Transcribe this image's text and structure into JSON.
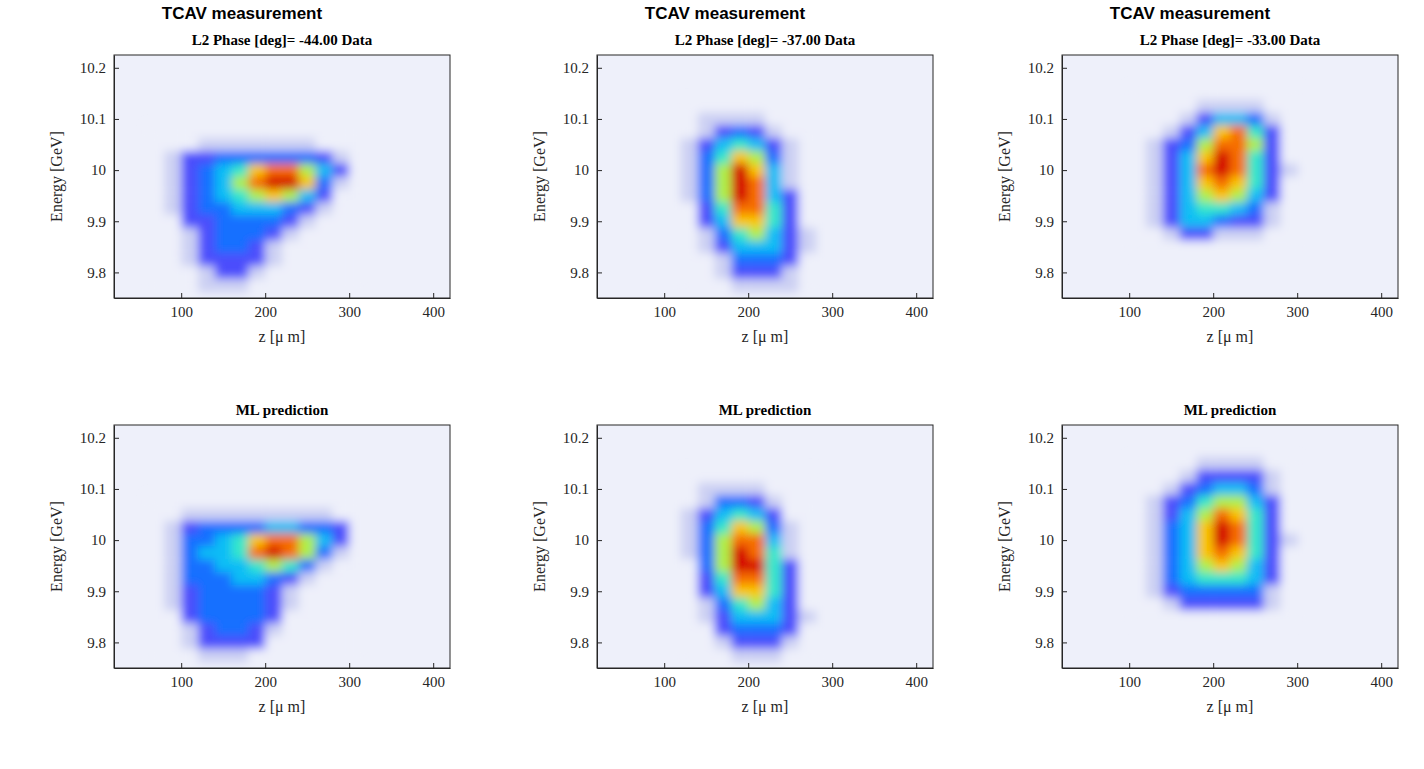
{
  "chart_data": [
    {
      "type": "heatmap",
      "annotation": "TCAV measurement",
      "title": "L2 Phase [deg]= -44.00 Data",
      "x_label": "z [μ m]",
      "y_label": "Energy [GeV]",
      "xlim": [
        20,
        420
      ],
      "ylim": [
        9.75,
        10.225
      ],
      "xticks": [
        100,
        200,
        300,
        400
      ],
      "yticks": [
        9.8,
        9.9,
        10,
        10.1,
        10.2
      ],
      "zlim": [
        0,
        9
      ],
      "x": [
        70,
        90,
        110,
        130,
        150,
        170,
        190,
        210,
        230,
        250,
        270,
        290,
        310
      ],
      "y": [
        10.075,
        10.05,
        10.025,
        10.0,
        9.975,
        9.95,
        9.925,
        9.9,
        9.875,
        9.85,
        9.825,
        9.8,
        9.775
      ],
      "z": [
        [
          0,
          0,
          0,
          0,
          0,
          0,
          0,
          0,
          0,
          0,
          0,
          0,
          0
        ],
        [
          0,
          0,
          0,
          1,
          1,
          1,
          1,
          1,
          1,
          1,
          0,
          0,
          0
        ],
        [
          0,
          1,
          2,
          2,
          3,
          3,
          3,
          3,
          3,
          3,
          2,
          1,
          0
        ],
        [
          0,
          1,
          2,
          3,
          4,
          5,
          7,
          8,
          8,
          6,
          4,
          2,
          0
        ],
        [
          0,
          1,
          2,
          3,
          4,
          6,
          8,
          9,
          9,
          7,
          3,
          1,
          0
        ],
        [
          0,
          1,
          2,
          3,
          4,
          5,
          6,
          7,
          6,
          4,
          2,
          0,
          0
        ],
        [
          0,
          1,
          2,
          3,
          3,
          4,
          4,
          4,
          3,
          2,
          1,
          0,
          0
        ],
        [
          0,
          0,
          2,
          2,
          3,
          3,
          3,
          3,
          2,
          1,
          0,
          0,
          0
        ],
        [
          0,
          0,
          1,
          2,
          3,
          3,
          3,
          2,
          1,
          0,
          0,
          0,
          0
        ],
        [
          0,
          0,
          1,
          2,
          3,
          3,
          2,
          1,
          0,
          0,
          0,
          0,
          0
        ],
        [
          0,
          0,
          1,
          2,
          2,
          2,
          2,
          1,
          0,
          0,
          0,
          0,
          0
        ],
        [
          0,
          0,
          0,
          1,
          2,
          2,
          1,
          0,
          0,
          0,
          0,
          0,
          0
        ],
        [
          0,
          0,
          0,
          1,
          1,
          1,
          0,
          0,
          0,
          0,
          0,
          0,
          0
        ]
      ]
    },
    {
      "type": "heatmap",
      "annotation": "TCAV measurement",
      "title": "L2 Phase [deg]= -37.00 Data",
      "x_label": "z [μ m]",
      "y_label": "Energy [GeV]",
      "xlim": [
        20,
        420
      ],
      "ylim": [
        9.75,
        10.225
      ],
      "xticks": [
        100,
        200,
        300,
        400
      ],
      "yticks": [
        9.8,
        9.9,
        10,
        10.1,
        10.2
      ],
      "zlim": [
        0,
        9
      ],
      "x": [
        130,
        150,
        170,
        190,
        210,
        230,
        250,
        270
      ],
      "y": [
        10.125,
        10.1,
        10.075,
        10.05,
        10.025,
        10.0,
        9.975,
        9.95,
        9.925,
        9.9,
        9.875,
        9.85,
        9.825,
        9.8,
        9.775
      ],
      "z": [
        [
          0,
          0,
          0,
          0,
          0,
          0,
          0,
          0
        ],
        [
          0,
          1,
          1,
          1,
          1,
          0,
          0,
          0
        ],
        [
          0,
          1,
          2,
          3,
          2,
          1,
          0,
          0
        ],
        [
          1,
          2,
          4,
          5,
          4,
          2,
          1,
          0
        ],
        [
          1,
          3,
          5,
          7,
          6,
          3,
          1,
          0
        ],
        [
          1,
          3,
          6,
          9,
          7,
          4,
          1,
          0
        ],
        [
          1,
          3,
          6,
          9,
          8,
          4,
          1,
          0
        ],
        [
          1,
          3,
          6,
          9,
          8,
          4,
          2,
          0
        ],
        [
          0,
          2,
          5,
          8,
          8,
          5,
          2,
          0
        ],
        [
          0,
          2,
          4,
          7,
          7,
          5,
          2,
          0
        ],
        [
          0,
          1,
          3,
          5,
          6,
          4,
          2,
          1
        ],
        [
          0,
          1,
          2,
          4,
          4,
          4,
          2,
          1
        ],
        [
          0,
          0,
          1,
          3,
          3,
          3,
          2,
          0
        ],
        [
          0,
          0,
          1,
          2,
          2,
          2,
          1,
          0
        ],
        [
          0,
          0,
          0,
          1,
          1,
          1,
          1,
          0
        ]
      ]
    },
    {
      "type": "heatmap",
      "annotation": "TCAV measurement",
      "title": "L2 Phase [deg]= -33.00 Data",
      "x_label": "z [μ m]",
      "y_label": "Energy [GeV]",
      "xlim": [
        20,
        420
      ],
      "ylim": [
        9.75,
        10.225
      ],
      "xticks": [
        100,
        200,
        300,
        400
      ],
      "yticks": [
        9.8,
        9.9,
        10,
        10.1,
        10.2
      ],
      "zlim": [
        0,
        9
      ],
      "x": [
        110,
        130,
        150,
        170,
        190,
        210,
        230,
        250,
        270,
        290
      ],
      "y": [
        10.15,
        10.125,
        10.1,
        10.075,
        10.05,
        10.025,
        10.0,
        9.975,
        9.95,
        9.925,
        9.9,
        9.875,
        9.85
      ],
      "z": [
        [
          0,
          0,
          0,
          0,
          0,
          0,
          0,
          0,
          0,
          0
        ],
        [
          0,
          0,
          0,
          0,
          1,
          1,
          1,
          1,
          0,
          0
        ],
        [
          0,
          0,
          0,
          1,
          2,
          4,
          4,
          3,
          1,
          0
        ],
        [
          0,
          0,
          1,
          2,
          4,
          7,
          8,
          5,
          2,
          0
        ],
        [
          0,
          1,
          2,
          3,
          6,
          8,
          8,
          6,
          2,
          0
        ],
        [
          0,
          1,
          2,
          4,
          7,
          9,
          8,
          5,
          2,
          0
        ],
        [
          0,
          1,
          2,
          4,
          8,
          9,
          8,
          5,
          2,
          1
        ],
        [
          0,
          1,
          2,
          4,
          7,
          8,
          7,
          5,
          2,
          0
        ],
        [
          0,
          1,
          2,
          4,
          6,
          7,
          6,
          4,
          2,
          0
        ],
        [
          0,
          1,
          2,
          4,
          5,
          5,
          4,
          3,
          1,
          0
        ],
        [
          0,
          1,
          2,
          4,
          4,
          3,
          2,
          2,
          1,
          0
        ],
        [
          0,
          0,
          1,
          2,
          2,
          1,
          1,
          1,
          0,
          0
        ],
        [
          0,
          0,
          0,
          0,
          0,
          0,
          0,
          0,
          0,
          0
        ]
      ]
    },
    {
      "type": "heatmap",
      "title": "ML prediction",
      "x_label": "z [μ m]",
      "y_label": "Energy [GeV]",
      "xlim": [
        20,
        420
      ],
      "ylim": [
        9.75,
        10.225
      ],
      "xticks": [
        100,
        200,
        300,
        400
      ],
      "yticks": [
        9.8,
        9.9,
        10,
        10.1,
        10.2
      ],
      "zlim": [
        0,
        9
      ],
      "x": [
        70,
        90,
        110,
        130,
        150,
        170,
        190,
        210,
        230,
        250,
        270,
        290,
        310
      ],
      "y": [
        10.075,
        10.05,
        10.025,
        10.0,
        9.975,
        9.95,
        9.925,
        9.9,
        9.875,
        9.85,
        9.825,
        9.8,
        9.775
      ],
      "z": [
        [
          0,
          0,
          0,
          0,
          0,
          0,
          0,
          0,
          0,
          0,
          0,
          0,
          0
        ],
        [
          0,
          0,
          1,
          1,
          1,
          1,
          1,
          1,
          1,
          1,
          1,
          0,
          0
        ],
        [
          0,
          1,
          2,
          3,
          3,
          3,
          3,
          4,
          4,
          3,
          3,
          2,
          0
        ],
        [
          0,
          1,
          3,
          3,
          4,
          5,
          7,
          8,
          8,
          6,
          4,
          2,
          0
        ],
        [
          0,
          1,
          3,
          4,
          4,
          5,
          8,
          9,
          8,
          6,
          3,
          1,
          0
        ],
        [
          0,
          1,
          3,
          3,
          4,
          4,
          5,
          6,
          5,
          3,
          1,
          0,
          0
        ],
        [
          0,
          1,
          3,
          3,
          3,
          4,
          4,
          3,
          2,
          1,
          0,
          0,
          0
        ],
        [
          0,
          1,
          2,
          3,
          3,
          3,
          3,
          2,
          1,
          0,
          0,
          0,
          0
        ],
        [
          0,
          1,
          2,
          3,
          3,
          3,
          3,
          2,
          1,
          0,
          0,
          0,
          0
        ],
        [
          0,
          0,
          2,
          3,
          3,
          3,
          3,
          2,
          0,
          0,
          0,
          0,
          0
        ],
        [
          0,
          0,
          1,
          2,
          3,
          3,
          2,
          1,
          0,
          0,
          0,
          0,
          0
        ],
        [
          0,
          0,
          1,
          2,
          2,
          2,
          2,
          0,
          0,
          0,
          0,
          0,
          0
        ],
        [
          0,
          0,
          0,
          1,
          1,
          1,
          0,
          0,
          0,
          0,
          0,
          0,
          0
        ]
      ]
    },
    {
      "type": "heatmap",
      "title": "ML prediction",
      "x_label": "z [μ m]",
      "y_label": "Energy [GeV]",
      "xlim": [
        20,
        420
      ],
      "ylim": [
        9.75,
        10.225
      ],
      "xticks": [
        100,
        200,
        300,
        400
      ],
      "yticks": [
        9.8,
        9.9,
        10,
        10.1,
        10.2
      ],
      "zlim": [
        0,
        9
      ],
      "x": [
        130,
        150,
        170,
        190,
        210,
        230,
        250,
        270
      ],
      "y": [
        10.125,
        10.1,
        10.075,
        10.05,
        10.025,
        10.0,
        9.975,
        9.95,
        9.925,
        9.9,
        9.875,
        9.85,
        9.825,
        9.8,
        9.775
      ],
      "z": [
        [
          0,
          0,
          0,
          0,
          0,
          0,
          0,
          0
        ],
        [
          0,
          1,
          1,
          1,
          1,
          0,
          0,
          0
        ],
        [
          0,
          1,
          3,
          3,
          2,
          1,
          0,
          0
        ],
        [
          1,
          2,
          4,
          5,
          4,
          2,
          0,
          0
        ],
        [
          1,
          3,
          5,
          7,
          6,
          3,
          1,
          0
        ],
        [
          1,
          3,
          6,
          8,
          8,
          4,
          1,
          0
        ],
        [
          1,
          3,
          6,
          9,
          8,
          5,
          1,
          0
        ],
        [
          0,
          3,
          6,
          9,
          9,
          5,
          2,
          0
        ],
        [
          0,
          2,
          5,
          8,
          8,
          5,
          2,
          0
        ],
        [
          0,
          2,
          4,
          7,
          7,
          5,
          2,
          0
        ],
        [
          0,
          1,
          3,
          5,
          6,
          4,
          2,
          0
        ],
        [
          0,
          1,
          2,
          4,
          4,
          4,
          2,
          1
        ],
        [
          0,
          0,
          2,
          3,
          3,
          3,
          2,
          0
        ],
        [
          0,
          0,
          1,
          2,
          2,
          2,
          1,
          0
        ],
        [
          0,
          0,
          0,
          1,
          1,
          1,
          0,
          0
        ]
      ]
    },
    {
      "type": "heatmap",
      "title": "ML prediction",
      "x_label": "z [μ m]",
      "y_label": "Energy [GeV]",
      "xlim": [
        20,
        420
      ],
      "ylim": [
        9.75,
        10.225
      ],
      "xticks": [
        100,
        200,
        300,
        400
      ],
      "yticks": [
        9.8,
        9.9,
        10,
        10.1,
        10.2
      ],
      "zlim": [
        0,
        9
      ],
      "x": [
        110,
        130,
        150,
        170,
        190,
        210,
        230,
        250,
        270,
        290
      ],
      "y": [
        10.15,
        10.125,
        10.1,
        10.075,
        10.05,
        10.025,
        10.0,
        9.975,
        9.95,
        9.925,
        9.9,
        9.875,
        9.85
      ],
      "z": [
        [
          0,
          0,
          0,
          0,
          1,
          1,
          1,
          1,
          0,
          0
        ],
        [
          0,
          0,
          0,
          1,
          2,
          2,
          2,
          2,
          1,
          0
        ],
        [
          0,
          0,
          1,
          2,
          3,
          4,
          4,
          3,
          1,
          0
        ],
        [
          0,
          1,
          2,
          3,
          5,
          6,
          6,
          4,
          2,
          0
        ],
        [
          0,
          1,
          2,
          4,
          6,
          8,
          7,
          5,
          2,
          0
        ],
        [
          0,
          1,
          3,
          4,
          7,
          9,
          8,
          5,
          2,
          0
        ],
        [
          0,
          1,
          3,
          4,
          7,
          9,
          8,
          5,
          2,
          1
        ],
        [
          0,
          1,
          3,
          4,
          7,
          8,
          7,
          5,
          2,
          0
        ],
        [
          0,
          1,
          3,
          4,
          6,
          7,
          6,
          4,
          2,
          0
        ],
        [
          0,
          1,
          3,
          4,
          5,
          5,
          5,
          4,
          2,
          0
        ],
        [
          0,
          1,
          2,
          3,
          3,
          3,
          3,
          3,
          1,
          0
        ],
        [
          0,
          0,
          1,
          2,
          2,
          2,
          2,
          2,
          1,
          0
        ],
        [
          0,
          0,
          0,
          0,
          0,
          0,
          0,
          0,
          0,
          0
        ]
      ]
    }
  ]
}
